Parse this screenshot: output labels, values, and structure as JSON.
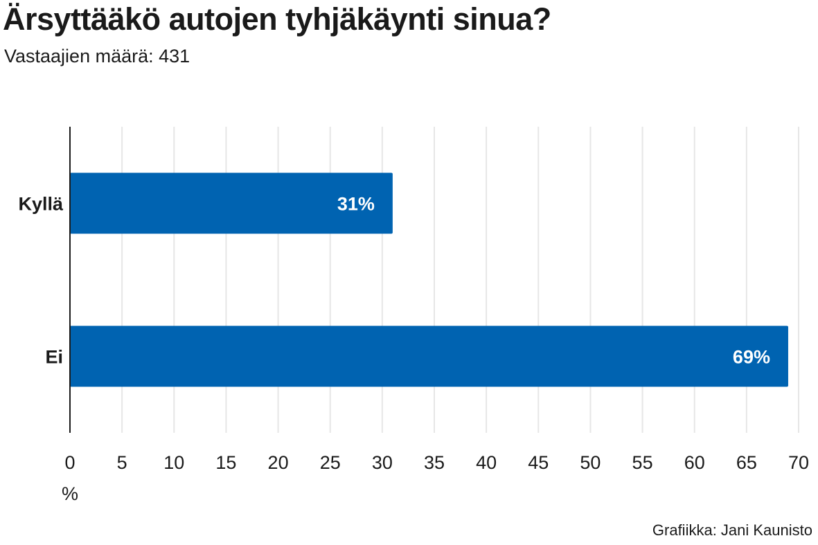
{
  "header": {
    "title": "Ärsyttääkö autojen tyhjäkäynti sinua?",
    "subtitle": "Vastaajien määrä: 431"
  },
  "footer": {
    "credit": "Grafiikka: Jani Kaunisto"
  },
  "chart_data": {
    "type": "bar",
    "orientation": "horizontal",
    "title": "Ärsyttääkö autojen tyhjäkäynti sinua?",
    "subtitle": "Vastaajien määrä: 431",
    "categories": [
      "Kyllä",
      "Ei"
    ],
    "values": [
      31,
      69
    ],
    "value_labels": [
      "31%",
      "69%"
    ],
    "xlabel": "%",
    "ylabel": "",
    "xlim": [
      0,
      70
    ],
    "ticks": [
      0,
      5,
      10,
      15,
      20,
      25,
      30,
      35,
      40,
      45,
      50,
      55,
      60,
      65,
      70
    ],
    "grid": true,
    "legend": "none",
    "colors": {
      "bar": "#0063b1",
      "grid": "#e6e6e6",
      "axis": "#1a1a1a",
      "bar_label": "#ffffff"
    }
  }
}
